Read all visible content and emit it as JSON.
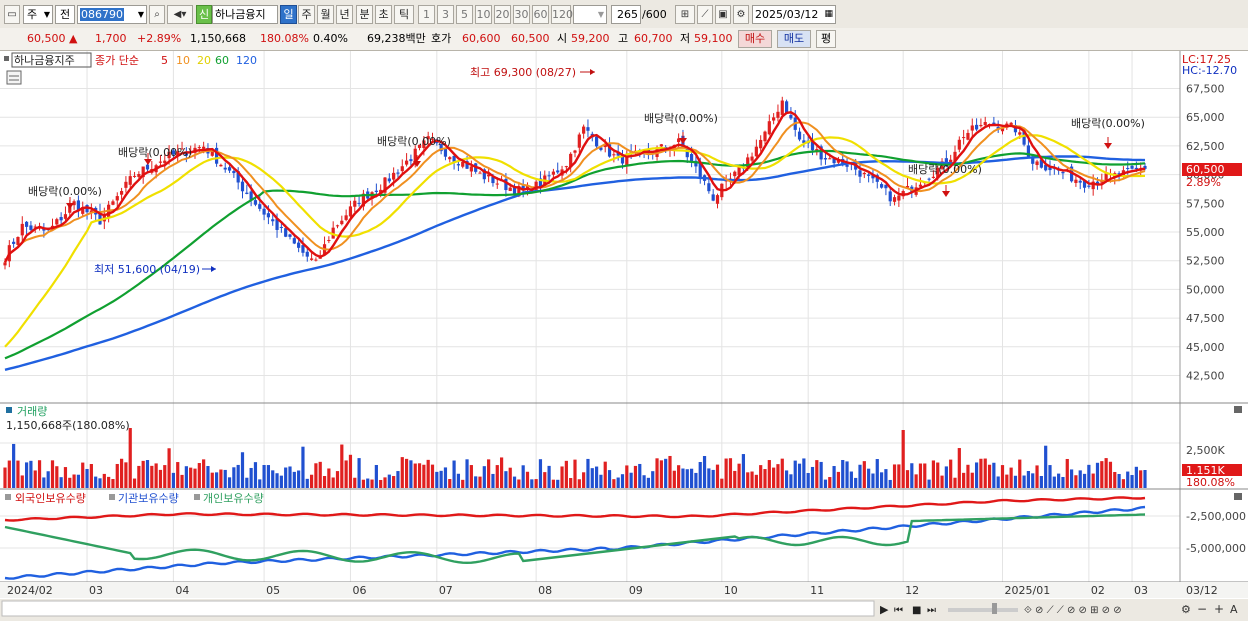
{
  "toolbar": {
    "market_type": "주",
    "exchange": "전",
    "stock_code": "086790",
    "new_badge": "신",
    "stock_name": "하나금융지",
    "periods": [
      "일",
      "주",
      "월",
      "년",
      "분",
      "초",
      "틱"
    ],
    "selected_period": "일",
    "intervals": [
      "1",
      "3",
      "5",
      "10",
      "20",
      "30",
      "60",
      "120"
    ],
    "display_count": "265",
    "total_count": "/600",
    "date": "2025/03/12"
  },
  "quote": {
    "price": "60,500",
    "change_arrow": "▲",
    "change": "1,700",
    "change_pct": "+2.89%",
    "volume": "1,150,668",
    "volume_ratio": "180.08%",
    "turnover": "0.40%",
    "amount": "69,238백만",
    "bid_ask_label": "호가",
    "ask": "60,600",
    "bid": "60,500",
    "open_label": "시",
    "open": "59,200",
    "high_label": "고",
    "high": "60,700",
    "low_label": "저",
    "low": "59,100",
    "buy_label": "매수",
    "sell_label": "매도",
    "eval_label": "평"
  },
  "price_panel": {
    "legend_name": "하나금융지주",
    "legend_ma_label": "종가 단순",
    "ma_periods": [
      "5",
      "10",
      "20",
      "60",
      "120"
    ],
    "lc_label": "LC:17.25",
    "hc_label": "HC:-12.70",
    "y_ticks": [
      "67,500",
      "65,000",
      "62,500",
      "60,000",
      "57,500",
      "55,000",
      "52,500",
      "50,000",
      "47,500",
      "45,000",
      "42,500"
    ],
    "current_price_tag": "60,500",
    "current_pct_tag": "2.89%",
    "annotations": {
      "high": "최고 69,300 (08/27)",
      "low": "최저 51,600 (04/19)",
      "dividends": [
        "배당락(0.00%)",
        "배당락(0.00%)",
        "배당락(0.00%)",
        "배당락(0.00%)",
        "배당락(0.00%)",
        "배당락(0.00%)"
      ]
    }
  },
  "volume_panel": {
    "title": "거래량",
    "value_label": "1,150,668주(180.08%)",
    "y_tick": "2,500K",
    "tag_value": "1.151K",
    "tag_pct": "180.08%"
  },
  "holdings_panel": {
    "legend": [
      "외국인보유수량",
      "기관보유수량",
      "개인보유수량"
    ],
    "y_ticks": [
      "-2,500,000",
      "-5,000,000"
    ]
  },
  "x_axis": {
    "labels": [
      "2024/02",
      "03",
      "04",
      "05",
      "06",
      "07",
      "08",
      "09",
      "10",
      "11",
      "12",
      "2025/01",
      "02",
      "03"
    ],
    "right_label": "03/12"
  },
  "colors": {
    "up": "#e02020",
    "down": "#2050d0",
    "ma5": "#e01010",
    "ma10": "#f09020",
    "ma20": "#f0e000",
    "ma60": "#10a030",
    "ma120": "#2060e0",
    "foreign": "#e01818",
    "institution": "#2060e0",
    "individual": "#30a060"
  }
}
